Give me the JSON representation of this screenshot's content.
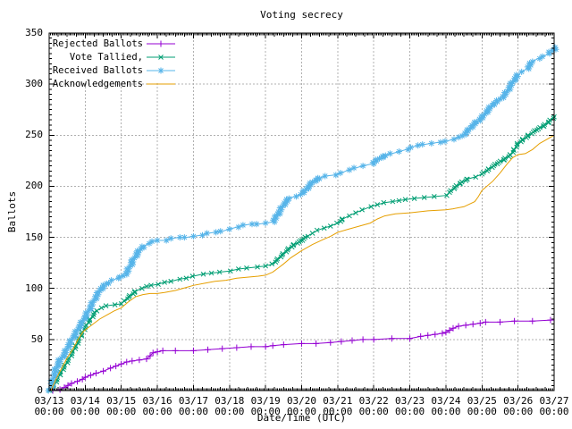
{
  "chart_data": {
    "type": "line",
    "title": "Voting secrecy",
    "xlabel": "Date/Time (UTC)",
    "ylabel": "Ballots",
    "ylim": [
      0,
      350
    ],
    "y_ticks": [
      0,
      50,
      100,
      150,
      200,
      250,
      300,
      350
    ],
    "x_tick_labels": [
      "03/13",
      "03/14",
      "03/15",
      "03/16",
      "03/17",
      "03/18",
      "03/19",
      "03/20",
      "03/21",
      "03/22",
      "03/23",
      "03/24",
      "03/25",
      "03/26",
      "03/27"
    ],
    "x_tick_time": "00:00",
    "x_unit": "days since 03/13 00:00 UTC",
    "grid": true,
    "legend_position": "top-left",
    "grid_color": "#b0b0b0",
    "axis_color": "#000000",
    "background_color": "#ffffff",
    "series": [
      {
        "name": "Rejected Ballots",
        "color": "#9400d3",
        "marker": "plus",
        "points": [
          [
            0.1,
            0
          ],
          [
            0.3,
            1
          ],
          [
            0.42,
            3
          ],
          [
            0.52,
            5
          ],
          [
            0.62,
            7
          ],
          [
            0.78,
            9
          ],
          [
            0.92,
            11
          ],
          [
            1.0,
            13
          ],
          [
            1.15,
            15
          ],
          [
            1.3,
            17
          ],
          [
            1.5,
            19
          ],
          [
            1.7,
            22
          ],
          [
            1.85,
            24
          ],
          [
            2.0,
            26
          ],
          [
            2.15,
            28
          ],
          [
            2.3,
            29
          ],
          [
            2.5,
            30
          ],
          [
            2.7,
            31
          ],
          [
            2.8,
            34
          ],
          [
            2.88,
            37
          ],
          [
            3.0,
            38
          ],
          [
            3.15,
            39
          ],
          [
            3.5,
            39
          ],
          [
            4.0,
            39
          ],
          [
            4.4,
            40
          ],
          [
            4.8,
            41
          ],
          [
            5.2,
            42
          ],
          [
            5.6,
            43
          ],
          [
            6.0,
            43
          ],
          [
            6.2,
            44
          ],
          [
            6.5,
            45
          ],
          [
            7.0,
            46
          ],
          [
            7.4,
            46
          ],
          [
            7.8,
            47
          ],
          [
            8.1,
            48
          ],
          [
            8.4,
            49
          ],
          [
            8.7,
            50
          ],
          [
            9.0,
            50
          ],
          [
            9.5,
            51
          ],
          [
            10.0,
            51
          ],
          [
            10.3,
            53
          ],
          [
            10.5,
            54
          ],
          [
            10.7,
            55
          ],
          [
            10.9,
            56
          ],
          [
            11.0,
            57
          ],
          [
            11.1,
            59
          ],
          [
            11.2,
            61
          ],
          [
            11.35,
            63
          ],
          [
            11.55,
            64
          ],
          [
            11.75,
            65
          ],
          [
            11.95,
            66
          ],
          [
            12.1,
            67
          ],
          [
            12.5,
            67
          ],
          [
            12.9,
            68
          ],
          [
            13.4,
            68
          ],
          [
            13.9,
            69
          ]
        ]
      },
      {
        "name": "Vote Tallied,",
        "color": "#009e73",
        "marker": "cross",
        "points": [
          [
            0.05,
            0
          ],
          [
            0.15,
            6
          ],
          [
            0.3,
            16
          ],
          [
            0.45,
            25
          ],
          [
            0.6,
            34
          ],
          [
            0.75,
            44
          ],
          [
            0.9,
            55
          ],
          [
            1.0,
            62
          ],
          [
            1.15,
            70
          ],
          [
            1.3,
            78
          ],
          [
            1.45,
            81
          ],
          [
            1.6,
            83
          ],
          [
            1.8,
            84
          ],
          [
            2.0,
            85
          ],
          [
            2.1,
            88
          ],
          [
            2.25,
            93
          ],
          [
            2.4,
            97
          ],
          [
            2.55,
            100
          ],
          [
            2.7,
            102
          ],
          [
            2.85,
            103
          ],
          [
            3.0,
            104
          ],
          [
            3.2,
            106
          ],
          [
            3.4,
            107
          ],
          [
            3.6,
            109
          ],
          [
            3.8,
            110
          ],
          [
            4.0,
            112
          ],
          [
            4.25,
            114
          ],
          [
            4.5,
            115
          ],
          [
            4.75,
            116
          ],
          [
            5.0,
            117
          ],
          [
            5.25,
            119
          ],
          [
            5.5,
            120
          ],
          [
            5.75,
            121
          ],
          [
            6.0,
            122
          ],
          [
            6.2,
            124
          ],
          [
            6.35,
            129
          ],
          [
            6.5,
            134
          ],
          [
            6.65,
            139
          ],
          [
            6.8,
            143
          ],
          [
            7.0,
            147
          ],
          [
            7.15,
            151
          ],
          [
            7.3,
            154
          ],
          [
            7.45,
            157
          ],
          [
            7.6,
            159
          ],
          [
            7.8,
            161
          ],
          [
            8.0,
            164
          ],
          [
            8.15,
            168
          ],
          [
            8.3,
            171
          ],
          [
            8.5,
            174
          ],
          [
            8.7,
            177
          ],
          [
            8.9,
            180
          ],
          [
            9.1,
            182
          ],
          [
            9.3,
            184
          ],
          [
            9.5,
            185
          ],
          [
            9.7,
            186
          ],
          [
            9.9,
            187
          ],
          [
            10.1,
            188
          ],
          [
            10.4,
            189
          ],
          [
            10.7,
            190
          ],
          [
            11.0,
            191
          ],
          [
            11.1,
            194
          ],
          [
            11.25,
            199
          ],
          [
            11.4,
            203
          ],
          [
            11.6,
            207
          ],
          [
            11.8,
            209
          ],
          [
            12.0,
            212
          ],
          [
            12.2,
            217
          ],
          [
            12.4,
            222
          ],
          [
            12.6,
            226
          ],
          [
            12.8,
            231
          ],
          [
            12.9,
            236
          ],
          [
            13.0,
            242
          ],
          [
            13.15,
            246
          ],
          [
            13.3,
            250
          ],
          [
            13.5,
            255
          ],
          [
            13.7,
            259
          ],
          [
            13.85,
            263
          ],
          [
            14.0,
            268
          ]
        ]
      },
      {
        "name": "Received Ballots",
        "color": "#56b4e9",
        "marker": "star",
        "points": [
          [
            0.03,
            0
          ],
          [
            0.1,
            10
          ],
          [
            0.2,
            22
          ],
          [
            0.3,
            30
          ],
          [
            0.42,
            35
          ],
          [
            0.55,
            45
          ],
          [
            0.7,
            54
          ],
          [
            0.85,
            63
          ],
          [
            1.0,
            72
          ],
          [
            1.15,
            82
          ],
          [
            1.3,
            92
          ],
          [
            1.45,
            100
          ],
          [
            1.6,
            105
          ],
          [
            1.75,
            108
          ],
          [
            1.9,
            110
          ],
          [
            2.0,
            111
          ],
          [
            2.15,
            115
          ],
          [
            2.3,
            126
          ],
          [
            2.45,
            135
          ],
          [
            2.6,
            141
          ],
          [
            2.75,
            144
          ],
          [
            2.9,
            146
          ],
          [
            3.0,
            147
          ],
          [
            3.2,
            147
          ],
          [
            3.4,
            149
          ],
          [
            3.6,
            150
          ],
          [
            3.8,
            150
          ],
          [
            4.0,
            151
          ],
          [
            4.2,
            152
          ],
          [
            4.4,
            154
          ],
          [
            4.6,
            155
          ],
          [
            4.8,
            156
          ],
          [
            5.0,
            158
          ],
          [
            5.2,
            160
          ],
          [
            5.4,
            162
          ],
          [
            5.6,
            163
          ],
          [
            5.8,
            163
          ],
          [
            6.0,
            164
          ],
          [
            6.2,
            165
          ],
          [
            6.35,
            173
          ],
          [
            6.5,
            182
          ],
          [
            6.65,
            188
          ],
          [
            6.8,
            190
          ],
          [
            7.0,
            192
          ],
          [
            7.15,
            198
          ],
          [
            7.3,
            204
          ],
          [
            7.5,
            208
          ],
          [
            7.65,
            210
          ],
          [
            7.9,
            211
          ],
          [
            8.1,
            213
          ],
          [
            8.3,
            216
          ],
          [
            8.5,
            218
          ],
          [
            8.7,
            220
          ],
          [
            8.95,
            222
          ],
          [
            9.1,
            226
          ],
          [
            9.3,
            230
          ],
          [
            9.5,
            232
          ],
          [
            9.7,
            234
          ],
          [
            9.9,
            236
          ],
          [
            10.05,
            238
          ],
          [
            10.2,
            240
          ],
          [
            10.4,
            241
          ],
          [
            10.6,
            242
          ],
          [
            10.8,
            243
          ],
          [
            11.0,
            244
          ],
          [
            11.2,
            246
          ],
          [
            11.4,
            248
          ],
          [
            11.55,
            252
          ],
          [
            11.7,
            258
          ],
          [
            11.85,
            263
          ],
          [
            12.0,
            267
          ],
          [
            12.15,
            274
          ],
          [
            12.3,
            280
          ],
          [
            12.45,
            284
          ],
          [
            12.6,
            288
          ],
          [
            12.7,
            293
          ],
          [
            12.85,
            302
          ],
          [
            13.0,
            309
          ],
          [
            13.1,
            312
          ],
          [
            13.25,
            315
          ],
          [
            13.4,
            322
          ],
          [
            13.55,
            325
          ],
          [
            13.7,
            327
          ],
          [
            13.85,
            330
          ],
          [
            14.0,
            334
          ],
          [
            14.05,
            336
          ]
        ]
      },
      {
        "name": "Acknowledgements",
        "color": "#e69f00",
        "marker": "none",
        "points": [
          [
            0.05,
            0
          ],
          [
            0.2,
            12
          ],
          [
            0.35,
            22
          ],
          [
            0.5,
            32
          ],
          [
            0.65,
            40
          ],
          [
            0.8,
            50
          ],
          [
            0.95,
            58
          ],
          [
            1.1,
            62
          ],
          [
            1.25,
            66
          ],
          [
            1.4,
            70
          ],
          [
            1.6,
            74
          ],
          [
            1.8,
            78
          ],
          [
            2.0,
            81
          ],
          [
            2.2,
            87
          ],
          [
            2.4,
            92
          ],
          [
            2.6,
            94
          ],
          [
            2.8,
            95
          ],
          [
            3.0,
            95
          ],
          [
            3.2,
            96
          ],
          [
            3.5,
            98
          ],
          [
            3.8,
            101
          ],
          [
            4.0,
            103
          ],
          [
            4.3,
            105
          ],
          [
            4.6,
            107
          ],
          [
            4.9,
            108
          ],
          [
            5.2,
            110
          ],
          [
            5.5,
            111
          ],
          [
            5.8,
            112
          ],
          [
            6.0,
            113
          ],
          [
            6.2,
            116
          ],
          [
            6.35,
            120
          ],
          [
            6.5,
            124
          ],
          [
            6.7,
            130
          ],
          [
            7.0,
            137
          ],
          [
            7.3,
            143
          ],
          [
            7.6,
            148
          ],
          [
            7.8,
            151
          ],
          [
            8.0,
            155
          ],
          [
            8.3,
            158
          ],
          [
            8.6,
            161
          ],
          [
            8.9,
            164
          ],
          [
            9.1,
            168
          ],
          [
            9.3,
            171
          ],
          [
            9.6,
            173
          ],
          [
            10.0,
            174
          ],
          [
            10.5,
            176
          ],
          [
            11.0,
            177
          ],
          [
            11.2,
            178
          ],
          [
            11.5,
            180
          ],
          [
            11.8,
            185
          ],
          [
            11.9,
            190
          ],
          [
            12.0,
            196
          ],
          [
            12.1,
            199
          ],
          [
            12.3,
            205
          ],
          [
            12.5,
            213
          ],
          [
            12.7,
            222
          ],
          [
            12.85,
            228
          ],
          [
            13.0,
            231
          ],
          [
            13.2,
            232
          ],
          [
            13.4,
            236
          ],
          [
            13.6,
            242
          ],
          [
            13.8,
            246
          ],
          [
            14.0,
            250
          ]
        ]
      }
    ]
  }
}
